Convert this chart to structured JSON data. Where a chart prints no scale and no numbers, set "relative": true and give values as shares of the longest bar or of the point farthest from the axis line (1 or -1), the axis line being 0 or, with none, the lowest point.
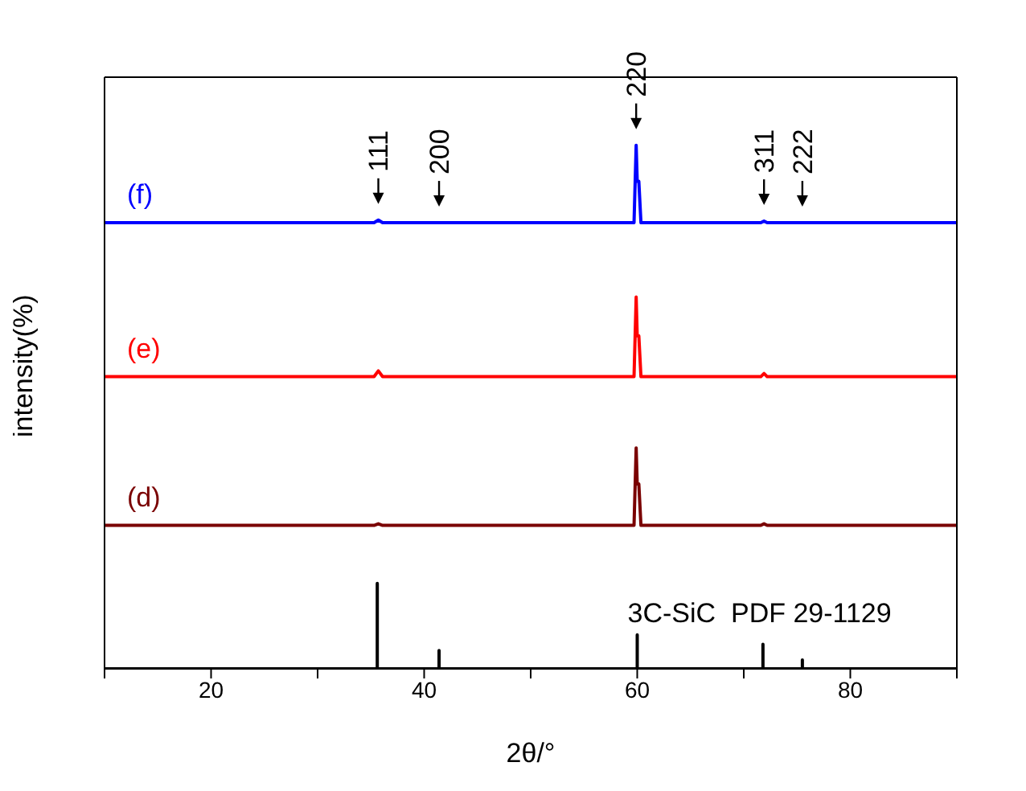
{
  "chart_data": {
    "type": "line",
    "relative": true,
    "xlabel": "2θ/°",
    "ylabel": "intensity(%)",
    "xlim": [
      10,
      90
    ],
    "xticks": [
      {
        "value": 10,
        "label": null
      },
      20,
      {
        "value": 30,
        "label": null
      },
      40,
      {
        "value": 50,
        "label": null
      },
      60,
      {
        "value": 70,
        "label": null
      },
      80,
      {
        "value": 90,
        "label": null
      }
    ],
    "grid": false,
    "legend": false,
    "marker": "none",
    "line_style": "solid",
    "series": [
      {
        "name": "(f)",
        "color": "#0000ff",
        "x": [
          10,
          35.3,
          35.7,
          36.1,
          41.4,
          59.7,
          59.9,
          60.0,
          60.15,
          60.35,
          71.6,
          71.9,
          72.2,
          75.5,
          90
        ],
        "values": [
          0.852,
          0.852,
          0.857,
          0.852,
          0.852,
          0.852,
          1,
          0.931,
          0.931,
          0.852,
          0.852,
          0.855,
          0.852,
          0.852,
          0.852
        ]
      },
      {
        "name": "(e)",
        "color": "#ff0000",
        "x": [
          10,
          35.3,
          35.7,
          36.1,
          59.7,
          59.9,
          60.0,
          60.15,
          60.35,
          71.6,
          71.9,
          72.2,
          90
        ],
        "values": [
          0.558,
          0.558,
          0.569,
          0.558,
          0.558,
          0.71,
          0.636,
          0.636,
          0.558,
          0.558,
          0.564,
          0.558,
          0.558
        ]
      },
      {
        "name": "(d)",
        "color": "#7a0000",
        "x": [
          10,
          35.3,
          35.7,
          36.1,
          59.7,
          59.9,
          60.0,
          60.15,
          60.35,
          71.6,
          71.9,
          72.2,
          90
        ],
        "values": [
          0.274,
          0.274,
          0.277,
          0.274,
          0.274,
          0.422,
          0.353,
          0.353,
          0.274,
          0.274,
          0.277,
          0.274,
          0.274
        ]
      },
      {
        "name": "3C-SiC  PDF 29-1129",
        "color": "#000000",
        "x": [
          10,
          35.6,
          35.6,
          35.6,
          41.4,
          41.4,
          41.4,
          60.0,
          60.0,
          60.0,
          71.8,
          71.8,
          71.8,
          75.5,
          75.5,
          75.5,
          90
        ],
        "values": [
          0,
          0,
          0.163,
          0,
          0,
          0.035,
          0,
          0,
          0.065,
          0,
          0,
          0.047,
          0,
          0,
          0.017,
          0,
          0
        ]
      }
    ],
    "annotations": [
      {
        "text": "111",
        "x": 35.7,
        "y": 0.857
      },
      {
        "text": "200",
        "x": 41.4,
        "y": 0.852
      },
      {
        "text": "220",
        "x": 59.9,
        "y": 1
      },
      {
        "text": "311",
        "x": 71.9,
        "y": 0.855
      },
      {
        "text": "222",
        "x": 75.5,
        "y": 0.852
      }
    ]
  }
}
